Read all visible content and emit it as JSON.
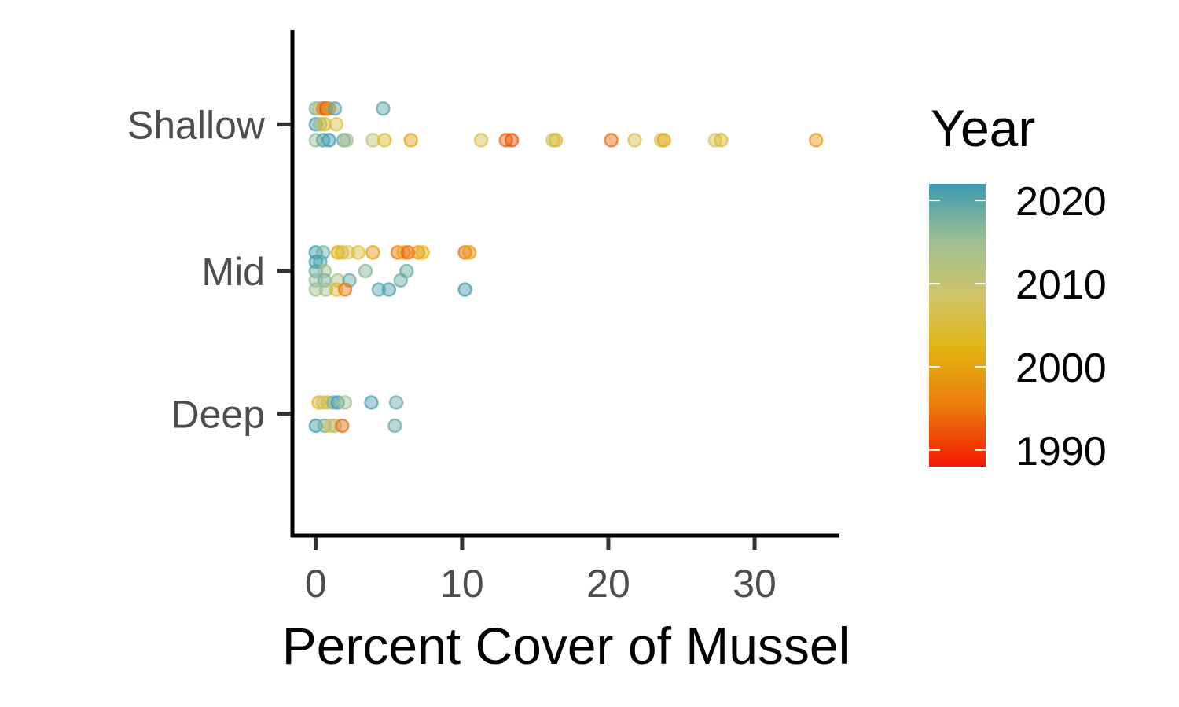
{
  "chart_data": {
    "type": "scatter",
    "xlabel": "Percent Cover of Mussel",
    "ylabel": "",
    "xlim": [
      -1.6,
      35.8
    ],
    "xticks": [
      0,
      10,
      20,
      30
    ],
    "categories": [
      "Shallow",
      "Mid",
      "Deep"
    ],
    "grid": false,
    "legend": {
      "title": "Year",
      "position": "right",
      "type": "colorbar",
      "range": [
        1988,
        2022
      ],
      "ticks": [
        2020,
        2010,
        2000,
        1990
      ],
      "colors": [
        "#F21A00",
        "#EB7E0F",
        "#E2B410",
        "#D1C56A",
        "#9EBE91",
        "#3B9AB2"
      ]
    },
    "points": [
      {
        "group": "Shallow",
        "offset": 0.17,
        "x": 0.0,
        "year": 2018
      },
      {
        "group": "Shallow",
        "offset": 0.17,
        "x": 0.2,
        "year": 2013
      },
      {
        "group": "Shallow",
        "offset": 0.17,
        "x": 0.5,
        "year": 1996
      },
      {
        "group": "Shallow",
        "offset": 0.17,
        "x": 0.7,
        "year": 1992
      },
      {
        "group": "Shallow",
        "offset": 0.17,
        "x": 0.9,
        "year": 1998
      },
      {
        "group": "Shallow",
        "offset": 0.17,
        "x": 1.3,
        "year": 2020
      },
      {
        "group": "Shallow",
        "offset": 0.17,
        "x": 4.6,
        "year": 2020
      },
      {
        "group": "Shallow",
        "offset": 0.0,
        "x": 0.0,
        "year": 2022
      },
      {
        "group": "Shallow",
        "offset": 0.0,
        "x": 0.3,
        "year": 2016
      },
      {
        "group": "Shallow",
        "offset": 0.0,
        "x": 0.6,
        "year": 2003
      },
      {
        "group": "Shallow",
        "offset": 0.0,
        "x": 1.4,
        "year": 2006
      },
      {
        "group": "Shallow",
        "offset": -0.17,
        "x": 0.0,
        "year": 2016
      },
      {
        "group": "Shallow",
        "offset": -0.17,
        "x": 0.5,
        "year": 2020
      },
      {
        "group": "Shallow",
        "offset": -0.17,
        "x": 0.9,
        "year": 2022
      },
      {
        "group": "Shallow",
        "offset": -0.17,
        "x": 1.9,
        "year": 2019
      },
      {
        "group": "Shallow",
        "offset": -0.17,
        "x": 2.1,
        "year": 2014
      },
      {
        "group": "Shallow",
        "offset": -0.17,
        "x": 3.9,
        "year": 2010
      },
      {
        "group": "Shallow",
        "offset": -0.17,
        "x": 4.7,
        "year": 2004
      },
      {
        "group": "Shallow",
        "offset": -0.17,
        "x": 6.5,
        "year": 2000
      },
      {
        "group": "Shallow",
        "offset": -0.17,
        "x": 11.3,
        "year": 2006
      },
      {
        "group": "Shallow",
        "offset": -0.17,
        "x": 13.0,
        "year": 1994
      },
      {
        "group": "Shallow",
        "offset": -0.17,
        "x": 13.4,
        "year": 1992
      },
      {
        "group": "Shallow",
        "offset": -0.17,
        "x": 16.2,
        "year": 2010
      },
      {
        "group": "Shallow",
        "offset": -0.17,
        "x": 16.4,
        "year": 2003
      },
      {
        "group": "Shallow",
        "offset": -0.17,
        "x": 20.2,
        "year": 1994
      },
      {
        "group": "Shallow",
        "offset": -0.17,
        "x": 21.8,
        "year": 2006
      },
      {
        "group": "Shallow",
        "offset": -0.17,
        "x": 23.6,
        "year": 2008
      },
      {
        "group": "Shallow",
        "offset": -0.17,
        "x": 23.8,
        "year": 2000
      },
      {
        "group": "Shallow",
        "offset": -0.17,
        "x": 27.3,
        "year": 2008
      },
      {
        "group": "Shallow",
        "offset": -0.17,
        "x": 27.7,
        "year": 2004
      },
      {
        "group": "Shallow",
        "offset": -0.17,
        "x": 34.2,
        "year": 1999
      },
      {
        "group": "Mid",
        "offset": 0.2,
        "x": 0.0,
        "year": 2022
      },
      {
        "group": "Mid",
        "offset": 0.2,
        "x": 0.5,
        "year": 2018
      },
      {
        "group": "Mid",
        "offset": 0.2,
        "x": 1.5,
        "year": 2000
      },
      {
        "group": "Mid",
        "offset": 0.2,
        "x": 1.8,
        "year": 2003
      },
      {
        "group": "Mid",
        "offset": 0.2,
        "x": 2.2,
        "year": 2008
      },
      {
        "group": "Mid",
        "offset": 0.2,
        "x": 2.9,
        "year": 2005
      },
      {
        "group": "Mid",
        "offset": 0.2,
        "x": 3.9,
        "year": 1999
      },
      {
        "group": "Mid",
        "offset": 0.2,
        "x": 5.6,
        "year": 1995
      },
      {
        "group": "Mid",
        "offset": 0.2,
        "x": 6.0,
        "year": 2001
      },
      {
        "group": "Mid",
        "offset": 0.2,
        "x": 6.3,
        "year": 1993
      },
      {
        "group": "Mid",
        "offset": 0.2,
        "x": 7.0,
        "year": 1997
      },
      {
        "group": "Mid",
        "offset": 0.2,
        "x": 7.3,
        "year": 2002
      },
      {
        "group": "Mid",
        "offset": 0.2,
        "x": 10.2,
        "year": 1994
      },
      {
        "group": "Mid",
        "offset": 0.2,
        "x": 10.5,
        "year": 1999
      },
      {
        "group": "Mid",
        "offset": 0.1,
        "x": 0.0,
        "year": 2022
      },
      {
        "group": "Mid",
        "offset": 0.1,
        "x": 0.3,
        "year": 2020
      },
      {
        "group": "Mid",
        "offset": 0.0,
        "x": 0.0,
        "year": 2020
      },
      {
        "group": "Mid",
        "offset": 0.0,
        "x": 0.6,
        "year": 2015
      },
      {
        "group": "Mid",
        "offset": 0.0,
        "x": 3.4,
        "year": 2017
      },
      {
        "group": "Mid",
        "offset": 0.0,
        "x": 6.2,
        "year": 2019
      },
      {
        "group": "Mid",
        "offset": -0.1,
        "x": 0.0,
        "year": 2016
      },
      {
        "group": "Mid",
        "offset": -0.1,
        "x": 0.6,
        "year": 2018
      },
      {
        "group": "Mid",
        "offset": -0.1,
        "x": 1.5,
        "year": 2013
      },
      {
        "group": "Mid",
        "offset": -0.1,
        "x": 2.3,
        "year": 2019
      },
      {
        "group": "Mid",
        "offset": -0.1,
        "x": 5.8,
        "year": 2019
      },
      {
        "group": "Mid",
        "offset": -0.2,
        "x": 0.0,
        "year": 2015
      },
      {
        "group": "Mid",
        "offset": -0.2,
        "x": 0.7,
        "year": 2014
      },
      {
        "group": "Mid",
        "offset": -0.2,
        "x": 1.4,
        "year": 2005
      },
      {
        "group": "Mid",
        "offset": -0.2,
        "x": 2.0,
        "year": 1995
      },
      {
        "group": "Mid",
        "offset": -0.2,
        "x": 4.3,
        "year": 2020
      },
      {
        "group": "Mid",
        "offset": -0.2,
        "x": 5.0,
        "year": 2021
      },
      {
        "group": "Mid",
        "offset": -0.2,
        "x": 10.2,
        "year": 2022
      },
      {
        "group": "Deep",
        "offset": 0.12,
        "x": 0.2,
        "year": 2003
      },
      {
        "group": "Deep",
        "offset": 0.12,
        "x": 0.5,
        "year": 2010
      },
      {
        "group": "Deep",
        "offset": 0.12,
        "x": 0.8,
        "year": 2005
      },
      {
        "group": "Deep",
        "offset": 0.12,
        "x": 1.2,
        "year": 2018
      },
      {
        "group": "Deep",
        "offset": 0.12,
        "x": 1.5,
        "year": 2022
      },
      {
        "group": "Deep",
        "offset": 0.12,
        "x": 2.0,
        "year": 2014
      },
      {
        "group": "Deep",
        "offset": 0.12,
        "x": 3.8,
        "year": 2021
      },
      {
        "group": "Deep",
        "offset": 0.12,
        "x": 5.5,
        "year": 2019
      },
      {
        "group": "Deep",
        "offset": -0.13,
        "x": 0.0,
        "year": 2022
      },
      {
        "group": "Deep",
        "offset": -0.13,
        "x": 0.6,
        "year": 2018
      },
      {
        "group": "Deep",
        "offset": -0.13,
        "x": 1.0,
        "year": 2006
      },
      {
        "group": "Deep",
        "offset": -0.13,
        "x": 1.3,
        "year": 2012
      },
      {
        "group": "Deep",
        "offset": -0.13,
        "x": 1.8,
        "year": 1994
      },
      {
        "group": "Deep",
        "offset": -0.13,
        "x": 5.4,
        "year": 2019
      }
    ]
  }
}
